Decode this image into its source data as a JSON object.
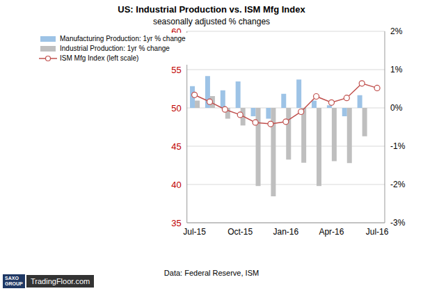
{
  "chart_data": {
    "type": "bar",
    "title": "US: Industrial Production vs. ISM Mfg Index",
    "subtitle": "seasonally adjusted % changes",
    "source": "Data: Federal Reserve, ISM",
    "logos": [
      "SAXO GROUP",
      "TradingFloor.com"
    ],
    "categories": [
      "Jul-15",
      null,
      null,
      "Oct-15",
      null,
      null,
      "Jan-16",
      null,
      null,
      "Apr-16",
      null,
      null,
      "Jul-16"
    ],
    "series": [
      {
        "name": "Manufacturing Production: 1yr % change",
        "type": "bar",
        "axis": "y2",
        "color": "#9dc3e6",
        "values": [
          0.57,
          0.83,
          0.46,
          0.69,
          -0.22,
          -0.28,
          0.37,
          0.74,
          0.19,
          0.07,
          -0.22,
          0.33,
          null
        ]
      },
      {
        "name": "Industrial Production: 1yr % change",
        "type": "bar",
        "axis": "y2",
        "color": "#bfbfbf",
        "values": [
          0.19,
          0.31,
          -0.28,
          -0.46,
          -2.04,
          -2.31,
          -1.35,
          -1.43,
          -2.04,
          -1.39,
          -1.44,
          -0.74,
          null
        ]
      },
      {
        "name": "ISM Mfg Index (left scale)",
        "type": "line",
        "axis": "y",
        "color": "#c0504d",
        "marker": "circle",
        "values": [
          51.7,
          50.8,
          49.8,
          49.1,
          48.1,
          47.9,
          48.2,
          49.5,
          51.5,
          50.7,
          51.3,
          53.2,
          52.6
        ]
      }
    ],
    "ylim": [
      35,
      60
    ],
    "yticks": [
      35,
      40,
      45,
      50,
      55,
      60
    ],
    "y2lim": [
      -3,
      2
    ],
    "y2ticks": [
      {
        "value": -3,
        "label": "-3%"
      },
      {
        "value": -2,
        "label": "-2%"
      },
      {
        "value": -1,
        "label": "-1%"
      },
      {
        "value": 0,
        "label": "0%"
      },
      {
        "value": 1,
        "label": "1%"
      },
      {
        "value": 2,
        "label": "2%"
      }
    ],
    "grid": true,
    "legend": "top-left"
  }
}
